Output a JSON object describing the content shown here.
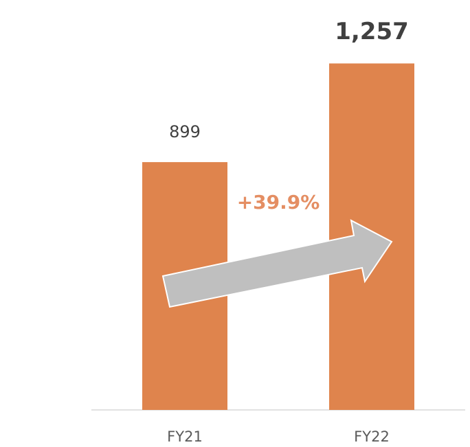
{
  "chart_data": {
    "type": "bar",
    "categories": [
      "FY21",
      "FY22"
    ],
    "values": [
      899,
      1257
    ],
    "value_labels": [
      "899",
      "1,257"
    ],
    "color": "#df844d",
    "ylim": [
      0,
      1400
    ],
    "annotation": "+39.9%"
  }
}
